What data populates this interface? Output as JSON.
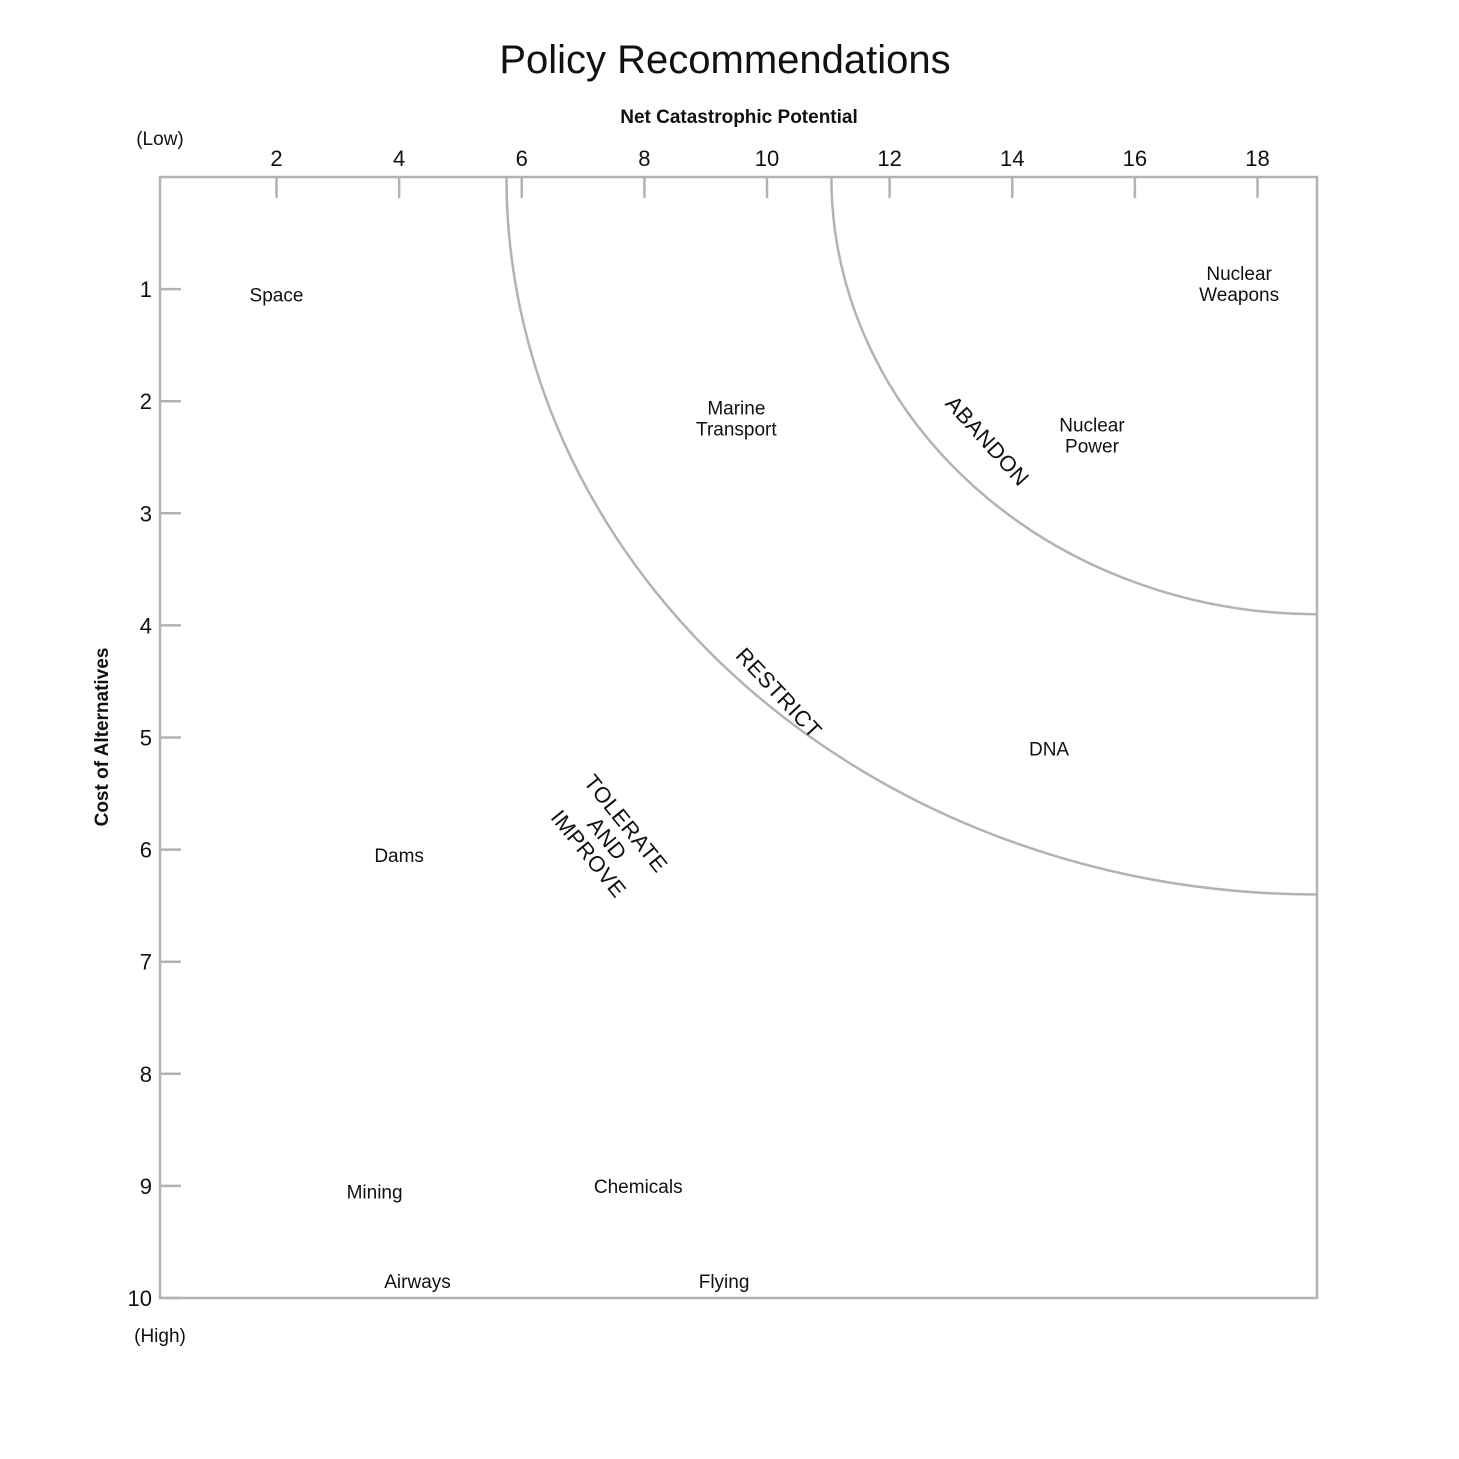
{
  "chart_data": {
    "type": "scatter",
    "title": "Policy Recommendations",
    "xlabel": "Net Catastrophic Potential",
    "ylabel": "Cost of Alternatives",
    "y_low_label": "(Low)",
    "y_high_label": "(High)",
    "xlim": [
      0.1,
      18.97
    ],
    "ylim": [
      0,
      10
    ],
    "x_ticks": [
      "2",
      "4",
      "6",
      "8",
      "10",
      "12",
      "14",
      "16",
      "18"
    ],
    "y_ticks": [
      "1",
      "2",
      "3",
      "4",
      "5",
      "6",
      "7",
      "8",
      "9",
      "10"
    ],
    "x_axis_position": "top",
    "y_axis_inverted": true,
    "points": [
      {
        "label": [
          "Space"
        ],
        "x": 2.0,
        "y": 1.05
      },
      {
        "label": [
          "Marine",
          "Transport"
        ],
        "x": 9.5,
        "y": 2.15
      },
      {
        "label": [
          "Nuclear",
          "Weapons"
        ],
        "x": 17.7,
        "y": 0.95
      },
      {
        "label": [
          "Nuclear",
          "Power"
        ],
        "x": 15.3,
        "y": 2.3
      },
      {
        "label": [
          "DNA"
        ],
        "x": 14.6,
        "y": 5.1
      },
      {
        "label": [
          "Dams"
        ],
        "x": 4.0,
        "y": 6.05
      },
      {
        "label": [
          "Mining"
        ],
        "x": 3.6,
        "y": 9.05
      },
      {
        "label": [
          "Chemicals"
        ],
        "x": 7.9,
        "y": 9.0
      },
      {
        "label": [
          "Airways"
        ],
        "x": 4.3,
        "y": 9.85
      },
      {
        "label": [
          "Flying"
        ],
        "x": 9.3,
        "y": 9.85
      }
    ],
    "boundaries": [
      {
        "name": "RESTRICT",
        "from": [
          5.75,
          0
        ],
        "to": [
          18.97,
          6.4
        ]
      },
      {
        "name": "ABANDON",
        "from": [
          11.05,
          0
        ],
        "to": [
          18.97,
          3.9
        ]
      }
    ],
    "zones": [
      {
        "label": [
          "TOLERATE",
          "AND",
          "IMPROVE"
        ],
        "x": 7.4,
        "y": 5.9
      },
      {
        "label": [
          "RESTRICT"
        ],
        "x": 10.2,
        "y": 4.6
      },
      {
        "label": [
          "ABANDON"
        ],
        "x": 13.6,
        "y": 2.35
      }
    ],
    "grid": false,
    "legend": "none"
  }
}
